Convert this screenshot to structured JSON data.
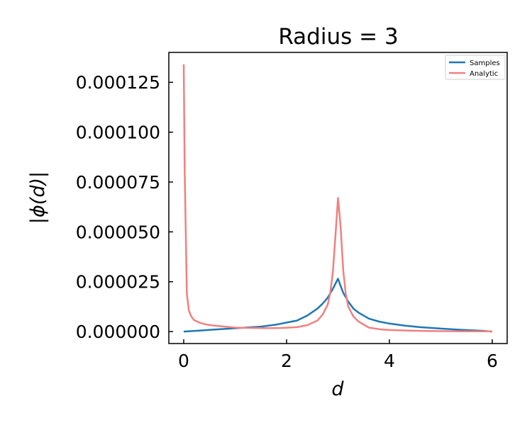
{
  "chart_data": {
    "type": "line",
    "title": "Radius = 3",
    "xlabel": "d",
    "ylabel": "|ϕ(d)|",
    "xlim": [
      0,
      6
    ],
    "ylim": [
      -6e-06,
      0.00014
    ],
    "xticks": [
      0,
      2,
      4,
      6
    ],
    "xtick_labels": [
      "0",
      "2",
      "4",
      "6"
    ],
    "yticks": [
      0,
      2.5e-05,
      5e-05,
      7.5e-05,
      0.0001,
      0.000125
    ],
    "ytick_labels": [
      "0.000000",
      "0.000025",
      "0.000050",
      "0.000075",
      "0.000100",
      "0.000125"
    ],
    "grid": false,
    "legend": {
      "placement": "top-right"
    },
    "series": [
      {
        "name": "Samples",
        "color": "#1f77b4",
        "x": [
          0,
          0.3,
          0.6,
          0.9,
          1.2,
          1.5,
          1.8,
          2.0,
          2.2,
          2.4,
          2.6,
          2.7,
          2.8,
          2.9,
          2.95,
          3.0,
          3.05,
          3.1,
          3.2,
          3.3,
          3.4,
          3.6,
          3.8,
          4.0,
          4.3,
          4.6,
          5.0,
          5.4,
          5.8,
          6.0
        ],
        "values": [
          0,
          5e-07,
          1e-06,
          1.5e-06,
          2e-06,
          2.5e-06,
          3.5e-06,
          4.5e-06,
          5.5e-06,
          8e-06,
          1.15e-05,
          1.4e-05,
          1.7e-05,
          2.15e-05,
          2.4e-05,
          2.65e-05,
          2.3e-05,
          1.95e-05,
          1.5e-05,
          1.15e-05,
          9.5e-06,
          6.5e-06,
          5e-06,
          4e-06,
          3e-06,
          2.2e-06,
          1.5e-06,
          9e-07,
          4e-07,
          0
        ]
      },
      {
        "name": "Analytic",
        "color": "#f08080",
        "x": [
          0.0,
          0.02,
          0.06,
          0.1,
          0.15,
          0.2,
          0.3,
          0.45,
          0.6,
          0.8,
          1.0,
          1.3,
          1.6,
          1.9,
          2.2,
          2.4,
          2.6,
          2.7,
          2.8,
          2.85,
          2.9,
          2.95,
          3.0,
          3.05,
          3.1,
          3.15,
          3.2,
          3.3,
          3.4,
          3.6,
          3.8,
          4.0,
          4.5,
          5.0,
          5.5,
          6.0
        ],
        "values": [
          0.000134,
          8e-05,
          1.9e-05,
          1.05e-05,
          7.5e-06,
          5.8e-06,
          4.5e-06,
          3.5e-06,
          3e-06,
          2.5e-06,
          2e-06,
          1.8e-06,
          1.7e-06,
          1.8e-06,
          2.2e-06,
          3.2e-06,
          5.5e-06,
          8.5e-06,
          1.35e-05,
          1.95e-05,
          3e-05,
          4.8e-05,
          6.7e-05,
          5.3e-05,
          3.1e-05,
          1.9e-05,
          1.25e-05,
          7.5e-06,
          5e-06,
          2e-06,
          1.2e-06,
          8e-07,
          4e-07,
          2e-07,
          1e-07,
          1e-07
        ]
      }
    ]
  }
}
